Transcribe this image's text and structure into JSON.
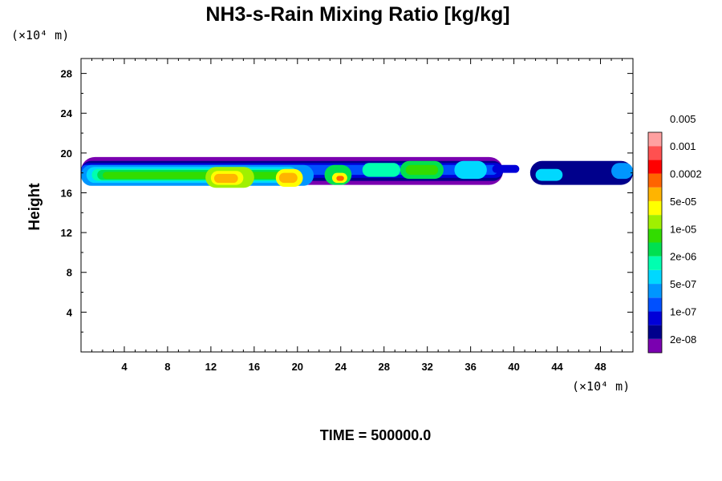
{
  "chart_data": {
    "type": "heatmap",
    "title": "NH3-s-Rain Mixing Ratio [kg/kg]",
    "xlabel": "",
    "ylabel": "Height",
    "x_unit": "(×10⁴ m)",
    "y_unit": "(×10⁴ m)",
    "xlim": [
      0,
      51
    ],
    "ylim": [
      0,
      29.5
    ],
    "x_ticks": [
      4,
      8,
      12,
      16,
      20,
      24,
      28,
      32,
      36,
      40,
      44,
      48
    ],
    "x_tick_labels": [
      "4",
      "8",
      "12",
      "16",
      "20",
      "24",
      "28",
      "32",
      "36",
      "40",
      "44",
      "48"
    ],
    "y_ticks": [
      4,
      8,
      12,
      16,
      20,
      24,
      28
    ],
    "y_tick_labels": [
      "4",
      "8",
      "12",
      "16",
      "20",
      "24",
      "28"
    ],
    "grid": false,
    "colorbar": {
      "colors": [
        "#7a00b0",
        "#00008c",
        "#0000d8",
        "#0050ff",
        "#0096ff",
        "#00d8ff",
        "#00ffb0",
        "#00e050",
        "#32dc00",
        "#a0f000",
        "#ffff00",
        "#ffb400",
        "#ff6400",
        "#ff0000",
        "#ff5050",
        "#ffa0a0"
      ],
      "labels": [
        "2e-08",
        "1e-07",
        "5e-07",
        "2e-06",
        "1e-05",
        "5e-05",
        "0.0002",
        "0.001",
        "0.005"
      ]
    },
    "regions": [
      {
        "x": [
          0,
          39
        ],
        "y": [
          16.8,
          19.6
        ],
        "level": 0
      },
      {
        "x": [
          0,
          39
        ],
        "y": [
          17.2,
          19.2
        ],
        "level": 1
      },
      {
        "x": [
          0,
          39
        ],
        "y": [
          17.5,
          19.0
        ],
        "level": 2
      },
      {
        "x": [
          0,
          38.5
        ],
        "y": [
          17.8,
          18.8
        ],
        "level": 3
      },
      {
        "x": [
          0,
          21.5
        ],
        "y": [
          16.7,
          18.8
        ],
        "level": 4
      },
      {
        "x": [
          0.5,
          20
        ],
        "y": [
          17.0,
          18.6
        ],
        "level": 5
      },
      {
        "x": [
          1.0,
          19.5
        ],
        "y": [
          17.2,
          18.4
        ],
        "level": 6
      },
      {
        "x": [
          1.5,
          19
        ],
        "y": [
          17.3,
          18.3
        ],
        "level": 7
      },
      {
        "x": [
          2.0,
          18.5
        ],
        "y": [
          17.4,
          18.1
        ],
        "level": 8
      },
      {
        "x": [
          11.5,
          16.0
        ],
        "y": [
          16.5,
          18.6
        ],
        "level": 9
      },
      {
        "x": [
          12.0,
          15.0
        ],
        "y": [
          16.8,
          18.2
        ],
        "level": 10
      },
      {
        "x": [
          12.3,
          14.5
        ],
        "y": [
          17.0,
          17.9
        ],
        "level": 11
      },
      {
        "x": [
          18.0,
          20.5
        ],
        "y": [
          16.6,
          18.4
        ],
        "level": 10
      },
      {
        "x": [
          18.3,
          20.0
        ],
        "y": [
          17.0,
          18.0
        ],
        "level": 11
      },
      {
        "x": [
          22.5,
          25.0
        ],
        "y": [
          16.8,
          18.8
        ],
        "level": 7
      },
      {
        "x": [
          23.2,
          24.6
        ],
        "y": [
          17.0,
          18.0
        ],
        "level": 10
      },
      {
        "x": [
          23.6,
          24.3
        ],
        "y": [
          17.2,
          17.7
        ],
        "level": 12
      },
      {
        "x": [
          26.0,
          29.5
        ],
        "y": [
          17.6,
          19.0
        ],
        "level": 6
      },
      {
        "x": [
          29.5,
          33.5
        ],
        "y": [
          17.4,
          19.2
        ],
        "level": 7
      },
      {
        "x": [
          30.0,
          33.0
        ],
        "y": [
          17.8,
          18.8
        ],
        "level": 8
      },
      {
        "x": [
          34.5,
          37.5
        ],
        "y": [
          17.4,
          19.2
        ],
        "level": 5
      },
      {
        "x": [
          38.0,
          40.5
        ],
        "y": [
          18.0,
          18.8
        ],
        "level": 2
      },
      {
        "x": [
          41.5,
          51.0
        ],
        "y": [
          16.8,
          19.2
        ],
        "level": 1
      },
      {
        "x": [
          42.0,
          44.5
        ],
        "y": [
          17.2,
          18.4
        ],
        "level": 5
      },
      {
        "x": [
          49.0,
          51.0
        ],
        "y": [
          17.4,
          19.0
        ],
        "level": 4
      }
    ],
    "time_label": "TIME = 500000.0"
  }
}
